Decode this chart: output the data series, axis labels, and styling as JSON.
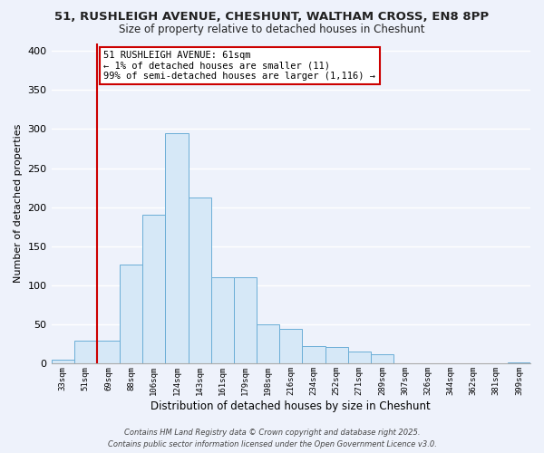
{
  "title_line1": "51, RUSHLEIGH AVENUE, CHESHUNT, WALTHAM CROSS, EN8 8PP",
  "title_line2": "Size of property relative to detached houses in Cheshunt",
  "xlabel": "Distribution of detached houses by size in Cheshunt",
  "ylabel": "Number of detached properties",
  "bar_labels": [
    "33sqm",
    "51sqm",
    "69sqm",
    "88sqm",
    "106sqm",
    "124sqm",
    "143sqm",
    "161sqm",
    "179sqm",
    "198sqm",
    "216sqm",
    "234sqm",
    "252sqm",
    "271sqm",
    "289sqm",
    "307sqm",
    "326sqm",
    "344sqm",
    "362sqm",
    "381sqm",
    "399sqm"
  ],
  "bar_heights": [
    5,
    30,
    30,
    127,
    190,
    295,
    212,
    110,
    110,
    50,
    44,
    22,
    21,
    16,
    12,
    0,
    0,
    0,
    0,
    0,
    2
  ],
  "bar_color": "#d6e8f7",
  "bar_edge_color": "#6baed6",
  "vline_x_idx": 2,
  "vline_color": "#cc0000",
  "annotation_text": "51 RUSHLEIGH AVENUE: 61sqm\n← 1% of detached houses are smaller (11)\n99% of semi-detached houses are larger (1,116) →",
  "annotation_box_color": "#ffffff",
  "annotation_box_edge": "#cc0000",
  "ylim": [
    0,
    410
  ],
  "yticks": [
    0,
    50,
    100,
    150,
    200,
    250,
    300,
    350,
    400
  ],
  "background_color": "#eef2fb",
  "grid_color": "#ffffff",
  "footer_line1": "Contains HM Land Registry data © Crown copyright and database right 2025.",
  "footer_line2": "Contains public sector information licensed under the Open Government Licence v3.0."
}
